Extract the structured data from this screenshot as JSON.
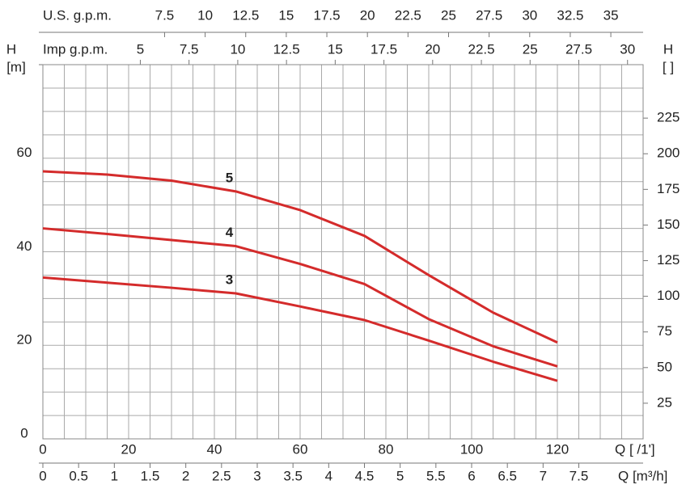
{
  "chart_data": {
    "type": "line",
    "x_label": "Q [ /1']",
    "y_label": "H",
    "y_unit": "[m]",
    "y2_label": "H",
    "y2_unit": "[ ]",
    "x": [
      0,
      15,
      30,
      45,
      60,
      75,
      90,
      105,
      120
    ],
    "series": [
      {
        "name": "5",
        "color": "#d42b2b",
        "values": [
          57.2,
          56.5,
          55.2,
          52.9,
          48.9,
          43.4,
          35,
          27,
          20.6
        ]
      },
      {
        "name": "4",
        "color": "#d42b2b",
        "values": [
          45,
          43.8,
          42.5,
          41.2,
          37.4,
          33.1,
          25.6,
          19.8,
          15.5
        ]
      },
      {
        "name": "3",
        "color": "#d42b2b",
        "values": [
          34.5,
          33.4,
          32.3,
          31.1,
          28.3,
          25.4,
          21,
          16.5,
          12.4
        ]
      }
    ],
    "xlim": [
      0,
      140
    ],
    "xticks": [
      0,
      20,
      40,
      60,
      80,
      100,
      120
    ],
    "ylim": [
      0,
      80
    ],
    "yticks": [
      0,
      20,
      40,
      60
    ],
    "y2lim": [
      0,
      262.5
    ],
    "y2ticks": [
      25,
      50,
      75,
      100,
      125,
      150,
      175,
      200,
      225
    ],
    "grid": true,
    "grid_x_step": 5,
    "grid_y_step": 5,
    "secondary_x_axes": [
      {
        "label": "Q [m³/h]",
        "position": "bottom",
        "xlim": [
          0,
          8.4
        ],
        "xticks": [
          0,
          0.5,
          1,
          1.5,
          2,
          2.5,
          3,
          3.5,
          4,
          4.5,
          5,
          5.5,
          6,
          6.5,
          7,
          7.5
        ]
      },
      {
        "label": "Imp g.p.m.",
        "position": "top",
        "xlim": [
          0,
          30.8
        ],
        "xticks": [
          5,
          7.5,
          10,
          12.5,
          15,
          17.5,
          20,
          22.5,
          25,
          27.5,
          30
        ]
      },
      {
        "label": "U.S. g.p.m.",
        "position": "top-outer",
        "xlim": [
          0,
          36.99
        ],
        "xticks": [
          7.5,
          10,
          12.5,
          15,
          17.5,
          20,
          22.5,
          25,
          27.5,
          30,
          32.5,
          35
        ]
      }
    ]
  }
}
